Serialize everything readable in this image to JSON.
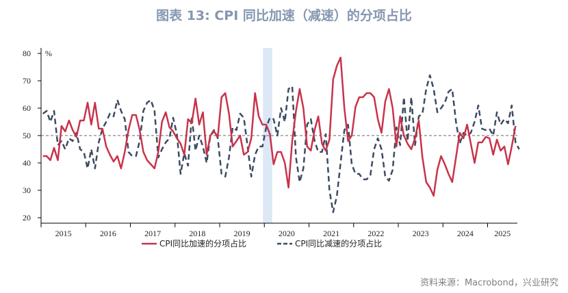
{
  "chart_data": {
    "type": "line",
    "title": "图表 13: CPI 同比加速（减速）的分项占比",
    "unit": "%",
    "ylim": [
      18,
      82
    ],
    "yticks": [
      20,
      30,
      40,
      50,
      60,
      70,
      80
    ],
    "reference_line": 50,
    "highlight_year": "2020 Jan",
    "x_labels": [
      "2015",
      "2016",
      "2017",
      "2018",
      "2019",
      "2020",
      "2021",
      "2022",
      "2023",
      "2024",
      "2025"
    ],
    "series": [
      {
        "name": "CPI同比加速的分项占比",
        "color": "#c8334a",
        "style": "solid",
        "values": [
          42.5,
          42.5,
          41,
          45.5,
          41,
          53.5,
          51.5,
          55.5,
          52,
          49.5,
          55.5,
          55.5,
          62,
          54,
          62,
          52.5,
          52.5,
          46,
          43,
          40.5,
          42.5,
          38,
          44,
          52,
          57.5,
          57.5,
          52,
          44,
          41,
          39.5,
          38,
          44,
          55,
          58.5,
          53,
          51.5,
          49,
          47,
          43,
          56,
          54.5,
          63.5,
          54,
          58.5,
          43,
          50,
          51.5,
          49.5,
          64,
          65.5,
          58,
          46,
          48,
          50,
          43,
          44,
          49,
          65.5,
          57,
          54,
          54,
          50.5,
          39.5,
          44,
          44,
          40,
          31,
          48,
          59,
          67,
          60,
          46,
          44.5,
          52,
          57,
          47,
          44.5,
          48.5,
          70.5,
          75.5,
          78.5,
          60,
          48,
          50,
          60.5,
          64,
          64,
          65.5,
          65.5,
          64,
          56,
          51,
          62.5,
          67,
          60,
          46,
          57,
          50,
          47,
          45,
          49,
          55.5,
          42,
          33,
          31,
          28,
          37.5,
          42.5,
          39.5,
          36,
          33,
          42,
          51,
          49,
          54,
          47,
          40,
          47.5,
          47.5,
          49.5,
          49,
          43,
          48.5,
          44.5,
          46,
          39.5,
          46,
          53.5
        ]
      },
      {
        "name": "CPI同比减速的分项占比",
        "color": "#3c4a62",
        "style": "dashed",
        "values": [
          58,
          59,
          55,
          59,
          46.5,
          48,
          45,
          49,
          48,
          51,
          45,
          44,
          38,
          45,
          38,
          47.5,
          52.5,
          55,
          58,
          57,
          63,
          59,
          56,
          44,
          42.5,
          42.5,
          48,
          59,
          62,
          63,
          59,
          42,
          45,
          47.5,
          49,
          56.5,
          50.5,
          36,
          43.5,
          39,
          57,
          44.5,
          50,
          46,
          40,
          50,
          52,
          49,
          36,
          35,
          42,
          53,
          52,
          58,
          56.5,
          46,
          35,
          43,
          46,
          46,
          53,
          56.5,
          56,
          50,
          60,
          55,
          67,
          68,
          42,
          33,
          38,
          54,
          56,
          48,
          44,
          44,
          50.5,
          30,
          22,
          28,
          40,
          52,
          54,
          39.5,
          36,
          36,
          34,
          34,
          35.5,
          45,
          49,
          45,
          35,
          33.5,
          37.5,
          53,
          46.5,
          64,
          48,
          64,
          46.5,
          57,
          58,
          67,
          72,
          67,
          58.5,
          60,
          62,
          66,
          67,
          55,
          47,
          51,
          50,
          51,
          55,
          61,
          52.5,
          52,
          52.5,
          50,
          58.5,
          54,
          56,
          54.5,
          61,
          47.5,
          45
        ]
      }
    ]
  },
  "source": "资料来源：Macrobond，兴业研究"
}
